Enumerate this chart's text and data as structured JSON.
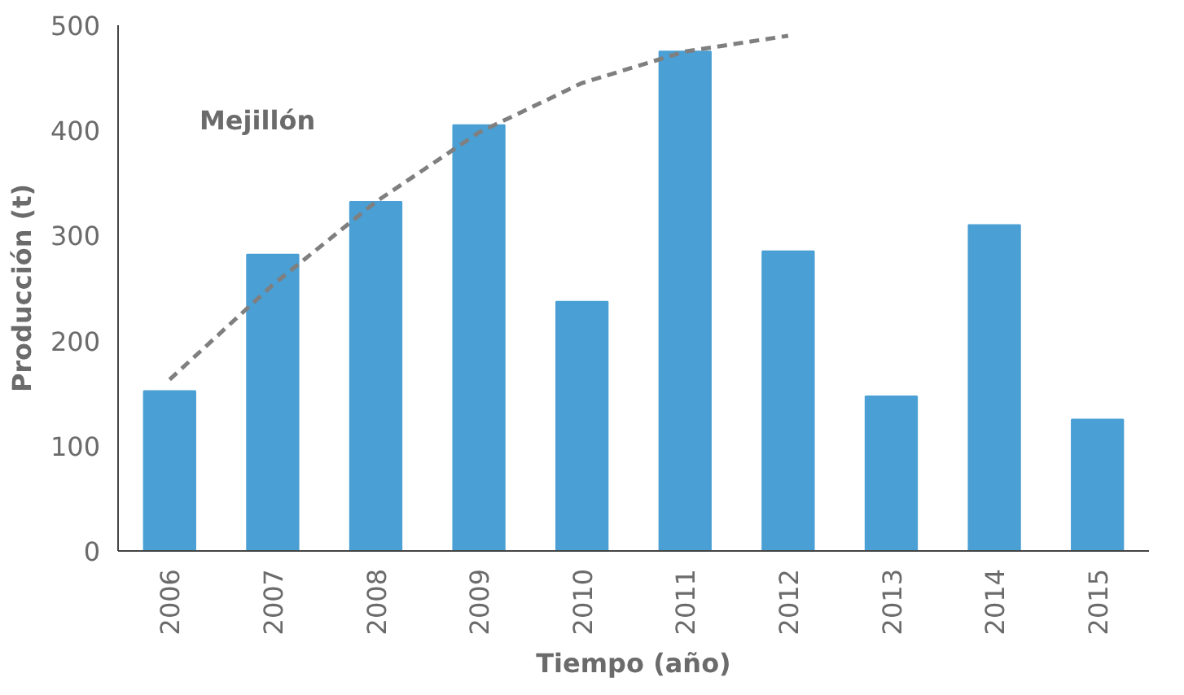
{
  "chart_data": {
    "type": "bar",
    "xlabel": "Tiempo (año)",
    "ylabel": "Producción (t)",
    "x": [
      2006,
      2007,
      2008,
      2009,
      2010,
      2011,
      2012,
      2013,
      2014,
      2015
    ],
    "xlim": [
      2005.5,
      2015.5
    ],
    "xticks": [
      2006,
      2007,
      2008,
      2009,
      2010,
      2011,
      2012,
      2013,
      2014,
      2015
    ],
    "ylim": [
      0,
      500
    ],
    "yticks": [
      0,
      100,
      200,
      300,
      400,
      500
    ],
    "grid": false,
    "series": [
      {
        "color": "#4a9fd4",
        "values": [
          152,
          282,
          332,
          405,
          237,
          475,
          285,
          147,
          310,
          125
        ]
      },
      {
        "type": "line",
        "color": "#7f7f7f",
        "line_style": "dashed",
        "x": [
          2006,
          2007,
          2008,
          2009,
          2010,
          2011,
          2012
        ],
        "values": [
          163,
          253,
          332,
          398,
          445,
          475,
          490
        ]
      }
    ],
    "annotations": [
      "Mejillón"
    ]
  }
}
